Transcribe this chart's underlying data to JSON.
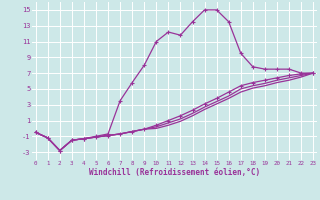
{
  "xlabel": "Windchill (Refroidissement éolien,°C)",
  "background_color": "#cde8e8",
  "grid_color": "#b0d8d8",
  "line_color": "#993399",
  "x_ticks": [
    0,
    1,
    2,
    3,
    4,
    5,
    6,
    7,
    8,
    9,
    10,
    11,
    12,
    13,
    14,
    15,
    16,
    17,
    18,
    19,
    20,
    21,
    22,
    23
  ],
  "y_ticks": [
    -3,
    -1,
    1,
    3,
    5,
    7,
    9,
    11,
    13,
    15
  ],
  "ylim": [
    -4,
    16
  ],
  "xlim": [
    -0.3,
    23.3
  ],
  "line1_x": [
    0,
    1,
    2,
    3,
    4,
    5,
    6,
    7,
    8,
    9,
    10,
    11,
    12,
    13,
    14,
    15,
    16,
    17,
    18,
    19,
    20,
    21,
    22,
    23
  ],
  "line1_y": [
    -0.5,
    -1.2,
    -2.8,
    -1.5,
    -1.3,
    -1.0,
    -0.7,
    3.5,
    5.8,
    8.0,
    11.0,
    12.2,
    11.8,
    13.5,
    15.0,
    15.0,
    13.5,
    9.5,
    7.8,
    7.5,
    7.5,
    7.5,
    7.0,
    7.0
  ],
  "line2_x": [
    0,
    1,
    2,
    3,
    4,
    5,
    6,
    7,
    8,
    9,
    10,
    11,
    12,
    13,
    14,
    15,
    16,
    17,
    18,
    19,
    20,
    21,
    22,
    23
  ],
  "line2_y": [
    -0.5,
    -1.2,
    -2.8,
    -1.5,
    -1.3,
    -1.1,
    -0.9,
    -0.7,
    -0.4,
    -0.1,
    0.4,
    1.0,
    1.6,
    2.3,
    3.1,
    3.8,
    4.6,
    5.4,
    5.8,
    6.1,
    6.4,
    6.7,
    6.9,
    7.0
  ],
  "line3_x": [
    0,
    1,
    2,
    3,
    4,
    5,
    6,
    7,
    8,
    9,
    10,
    11,
    12,
    13,
    14,
    15,
    16,
    17,
    18,
    19,
    20,
    21,
    22,
    23
  ],
  "line3_y": [
    -0.5,
    -1.2,
    -2.8,
    -1.5,
    -1.3,
    -1.1,
    -0.9,
    -0.7,
    -0.4,
    -0.1,
    0.2,
    0.7,
    1.2,
    1.9,
    2.7,
    3.4,
    4.1,
    5.0,
    5.4,
    5.7,
    6.1,
    6.4,
    6.7,
    7.0
  ],
  "line4_x": [
    0,
    1,
    2,
    3,
    4,
    5,
    6,
    7,
    8,
    9,
    10,
    11,
    12,
    13,
    14,
    15,
    16,
    17,
    18,
    19,
    20,
    21,
    22,
    23
  ],
  "line4_y": [
    -0.5,
    -1.2,
    -2.8,
    -1.5,
    -1.3,
    -1.1,
    -0.9,
    -0.7,
    -0.4,
    -0.1,
    0.0,
    0.4,
    0.9,
    1.6,
    2.4,
    3.1,
    3.8,
    4.6,
    5.1,
    5.4,
    5.8,
    6.1,
    6.5,
    7.0
  ]
}
